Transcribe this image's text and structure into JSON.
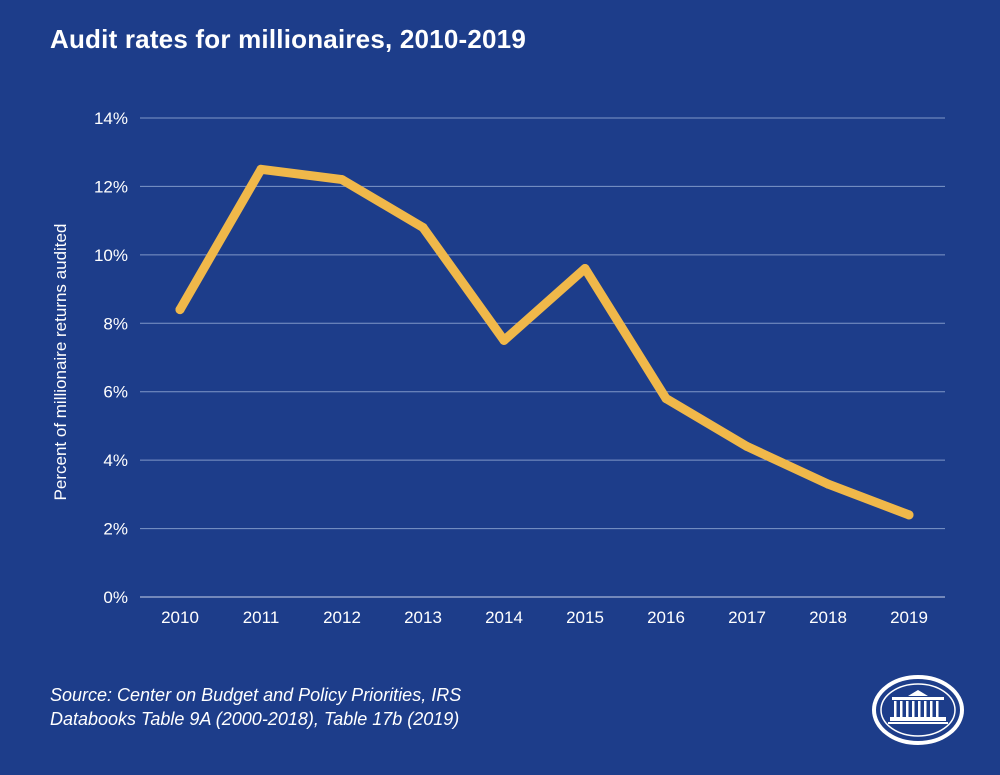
{
  "chart_data": {
    "type": "line",
    "title": "Audit rates for millionaires, 2010-2019",
    "xlabel": "",
    "ylabel": "Percent of millionaire returns audited",
    "categories": [
      "2010",
      "2011",
      "2012",
      "2013",
      "2014",
      "2015",
      "2016",
      "2017",
      "2018",
      "2019"
    ],
    "series": [
      {
        "name": "Audit rate",
        "values": [
          8.4,
          12.5,
          12.2,
          10.8,
          7.5,
          9.6,
          5.8,
          4.4,
          3.3,
          2.4
        ]
      }
    ],
    "ylim": [
      0,
      14
    ],
    "yticks": [
      "0%",
      "2%",
      "4%",
      "6%",
      "8%",
      "10%",
      "12%",
      "14%"
    ],
    "grid": true,
    "colors": {
      "background": "#1d3d8a",
      "line": "#f0b84a",
      "grid": "#7f97c8",
      "text": "#ffffff"
    }
  },
  "source": {
    "line1": "Source: Center on Budget and Policy Priorities, IRS",
    "line2": "Databooks Table 9A (2000-2018), Table 17b (2019)"
  },
  "logo": {
    "icon": "white-house-icon"
  }
}
